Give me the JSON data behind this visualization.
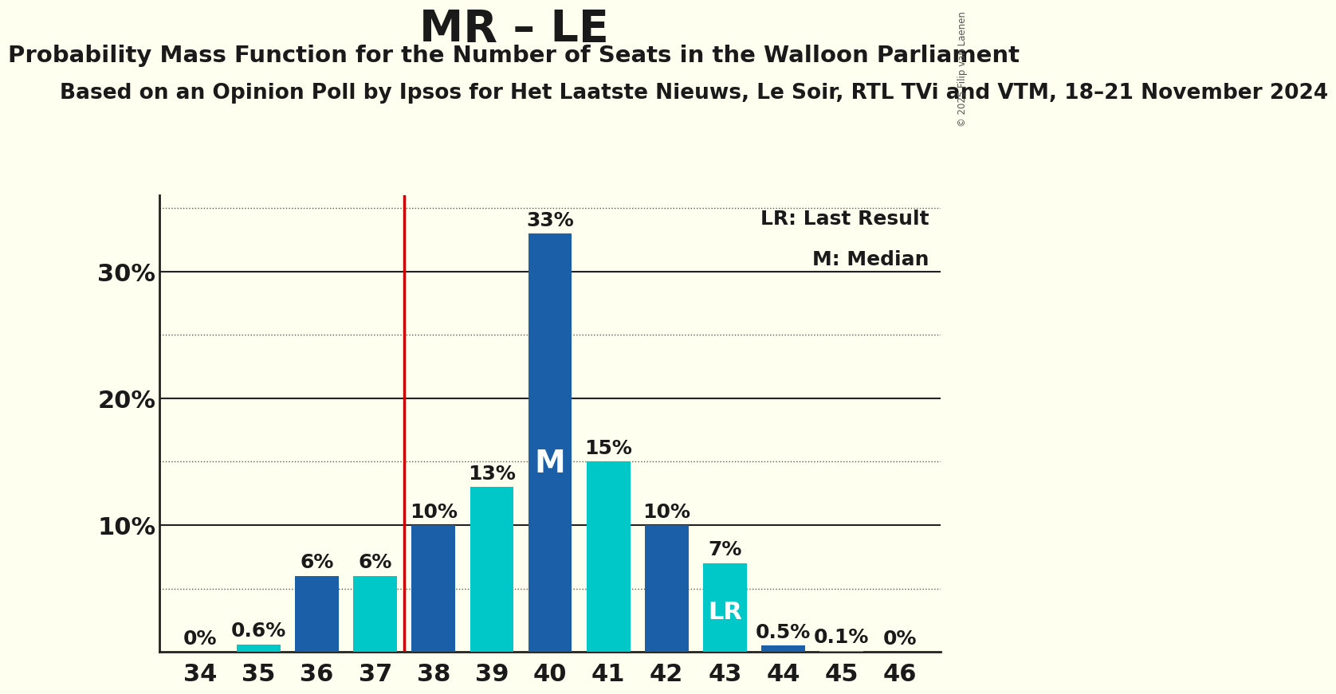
{
  "title": "MR – LE",
  "subtitle": "Probability Mass Function for the Number of Seats in the Walloon Parliament",
  "subsubtitle": "Based on an Opinion Poll by Ipsos for Het Laatste Nieuws, Le Soir, RTL TVi and VTM, 18–21 November 2024",
  "copyright": "© 2025 Filip van Laenen",
  "seats": [
    34,
    35,
    36,
    37,
    38,
    39,
    40,
    41,
    42,
    43,
    44,
    45,
    46
  ],
  "values": [
    0.0,
    0.6,
    6.0,
    6.0,
    10.0,
    13.0,
    33.0,
    15.0,
    10.0,
    7.0,
    0.5,
    0.1,
    0.0
  ],
  "colors": [
    "#1a5fa8",
    "#00c8c8",
    "#1a5fa8",
    "#00c8c8",
    "#1a5fa8",
    "#00c8c8",
    "#1a5fa8",
    "#00c8c8",
    "#1a5fa8",
    "#00c8c8",
    "#1a5fa8",
    "#00c8c8",
    "#1a5fa8"
  ],
  "background_color": "#fffff0",
  "vline_x": 37.5,
  "vline_color": "#cc0000",
  "median_seat": 40,
  "lr_seat": 43,
  "ylim_max": 36,
  "legend_lr": "LR: Last Result",
  "legend_m": "M: Median",
  "bar_label_fontsize": 18,
  "axis_tick_fontsize": 22,
  "title_fontsize": 40,
  "subtitle_fontsize": 21,
  "subsubtitle_fontsize": 19,
  "legend_fontsize": 18,
  "major_gridlines": [
    10,
    20,
    30
  ],
  "minor_gridlines": [
    5,
    15,
    25,
    35
  ]
}
